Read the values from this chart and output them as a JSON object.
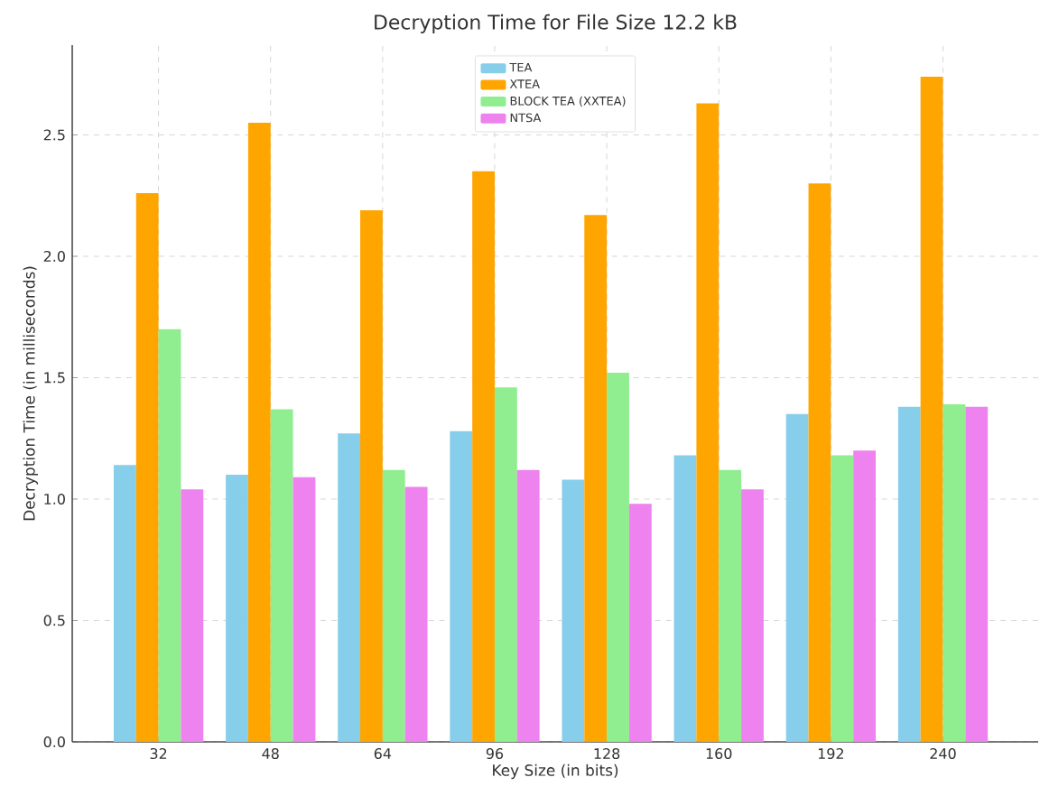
{
  "chart_data": {
    "type": "bar",
    "title": "Decryption Time for File Size 12.2 kB",
    "xlabel": "Key Size (in bits)",
    "ylabel": "Decryption Time (in milliseconds)",
    "categories": [
      "32",
      "48",
      "64",
      "96",
      "128",
      "160",
      "192",
      "240"
    ],
    "series": [
      {
        "name": "TEA",
        "color": "#87ceeb",
        "values": [
          1.14,
          1.1,
          1.27,
          1.28,
          1.08,
          1.18,
          1.35,
          1.38
        ]
      },
      {
        "name": "XTEA",
        "color": "#ffa500",
        "values": [
          2.26,
          2.55,
          2.19,
          2.35,
          2.17,
          2.63,
          2.3,
          2.74
        ]
      },
      {
        "name": "BLOCK TEA (XXTEA)",
        "color": "#90ee90",
        "values": [
          1.7,
          1.37,
          1.12,
          1.46,
          1.52,
          1.12,
          1.18,
          1.39
        ]
      },
      {
        "name": "NTSA",
        "color": "#ee82ee",
        "values": [
          1.04,
          1.09,
          1.05,
          1.12,
          0.98,
          1.04,
          1.2,
          1.38
        ]
      }
    ],
    "ylim": [
      0,
      2.87
    ],
    "yticks": [
      {
        "value": 0,
        "label": "0.0"
      },
      0.5,
      {
        "value": 1,
        "label": "1.0"
      },
      1.5,
      {
        "value": 2,
        "label": "2.0"
      },
      2.5
    ],
    "grid": true,
    "legend": "top"
  }
}
